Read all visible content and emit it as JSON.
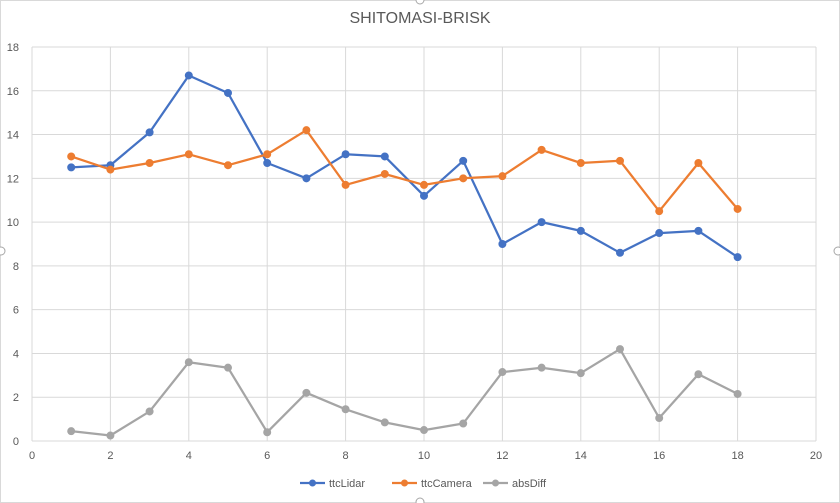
{
  "chart_data": {
    "type": "line",
    "title": "SHITOMASI-BRISK",
    "xlim": [
      0,
      20
    ],
    "ylim": [
      0,
      18
    ],
    "x_ticks": [
      0,
      2,
      4,
      6,
      8,
      10,
      12,
      14,
      16,
      18,
      20
    ],
    "y_ticks": [
      0,
      2,
      4,
      6,
      8,
      10,
      12,
      14,
      16,
      18
    ],
    "grid": true,
    "legend_position": "bottom",
    "x": [
      1,
      2,
      3,
      4,
      5,
      6,
      7,
      8,
      9,
      10,
      11,
      12,
      13,
      14,
      15,
      16,
      17,
      18
    ],
    "series": [
      {
        "name": "ttcLidar",
        "color": "#4472c4",
        "values": [
          12.5,
          12.6,
          14.1,
          16.7,
          15.9,
          12.7,
          12.0,
          13.1,
          13.0,
          11.2,
          12.8,
          9.0,
          10.0,
          9.6,
          8.6,
          9.5,
          9.6,
          8.4
        ]
      },
      {
        "name": "ttcCamera",
        "color": "#ed7d31",
        "values": [
          13.0,
          12.4,
          12.7,
          13.1,
          12.6,
          13.1,
          14.2,
          11.7,
          12.2,
          11.7,
          12.0,
          12.1,
          13.3,
          12.7,
          12.8,
          10.5,
          12.7,
          10.6
        ]
      },
      {
        "name": "absDiff",
        "color": "#a5a5a5",
        "values": [
          0.45,
          0.25,
          1.35,
          3.6,
          3.35,
          0.4,
          2.2,
          1.45,
          0.85,
          0.5,
          0.8,
          3.15,
          3.35,
          3.1,
          4.2,
          1.05,
          3.05,
          2.15
        ]
      }
    ]
  }
}
